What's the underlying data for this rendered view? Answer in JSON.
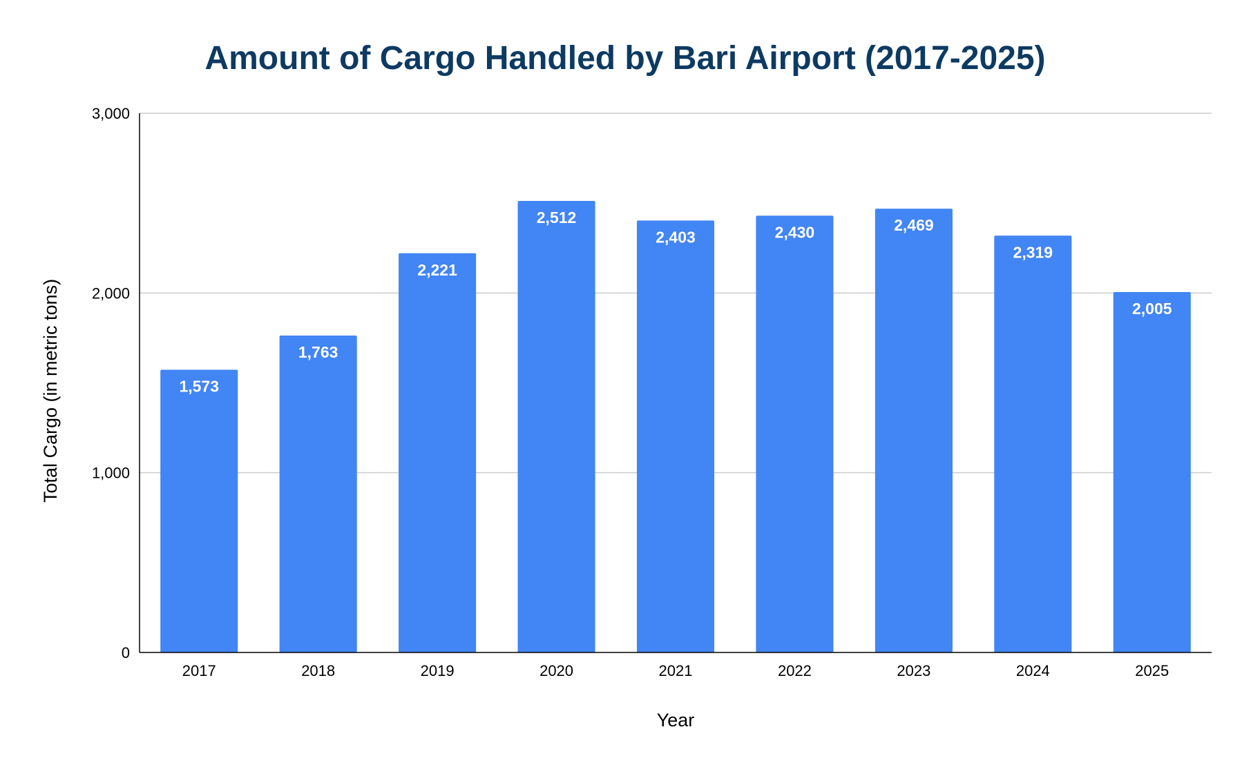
{
  "chart_data": {
    "type": "bar",
    "title": "Amount of Cargo Handled by Bari Airport (2017-2025)",
    "xlabel": "Year",
    "ylabel": "Total Cargo (in metric tons)",
    "categories": [
      "2017",
      "2018",
      "2019",
      "2020",
      "2021",
      "2022",
      "2023",
      "2024",
      "2025"
    ],
    "values": [
      1573,
      1763,
      2221,
      2512,
      2403,
      2430,
      2469,
      2319,
      2005
    ],
    "data_labels": [
      "1,573",
      "1,763",
      "2,221",
      "2,512",
      "2,403",
      "2,430",
      "2,469",
      "2,319",
      "2,005"
    ],
    "ylim": [
      0,
      3000
    ],
    "yticks": [
      0,
      1000,
      2000,
      3000
    ],
    "ytick_labels": [
      "0",
      "1,000",
      "2,000",
      "3,000"
    ],
    "grid": true,
    "legend": "none",
    "colors": {
      "bar": "#4285f4",
      "title": "#0d3a62",
      "gridline": "#cccccc",
      "axis": "#000000",
      "data_label": "#ffffff"
    }
  }
}
